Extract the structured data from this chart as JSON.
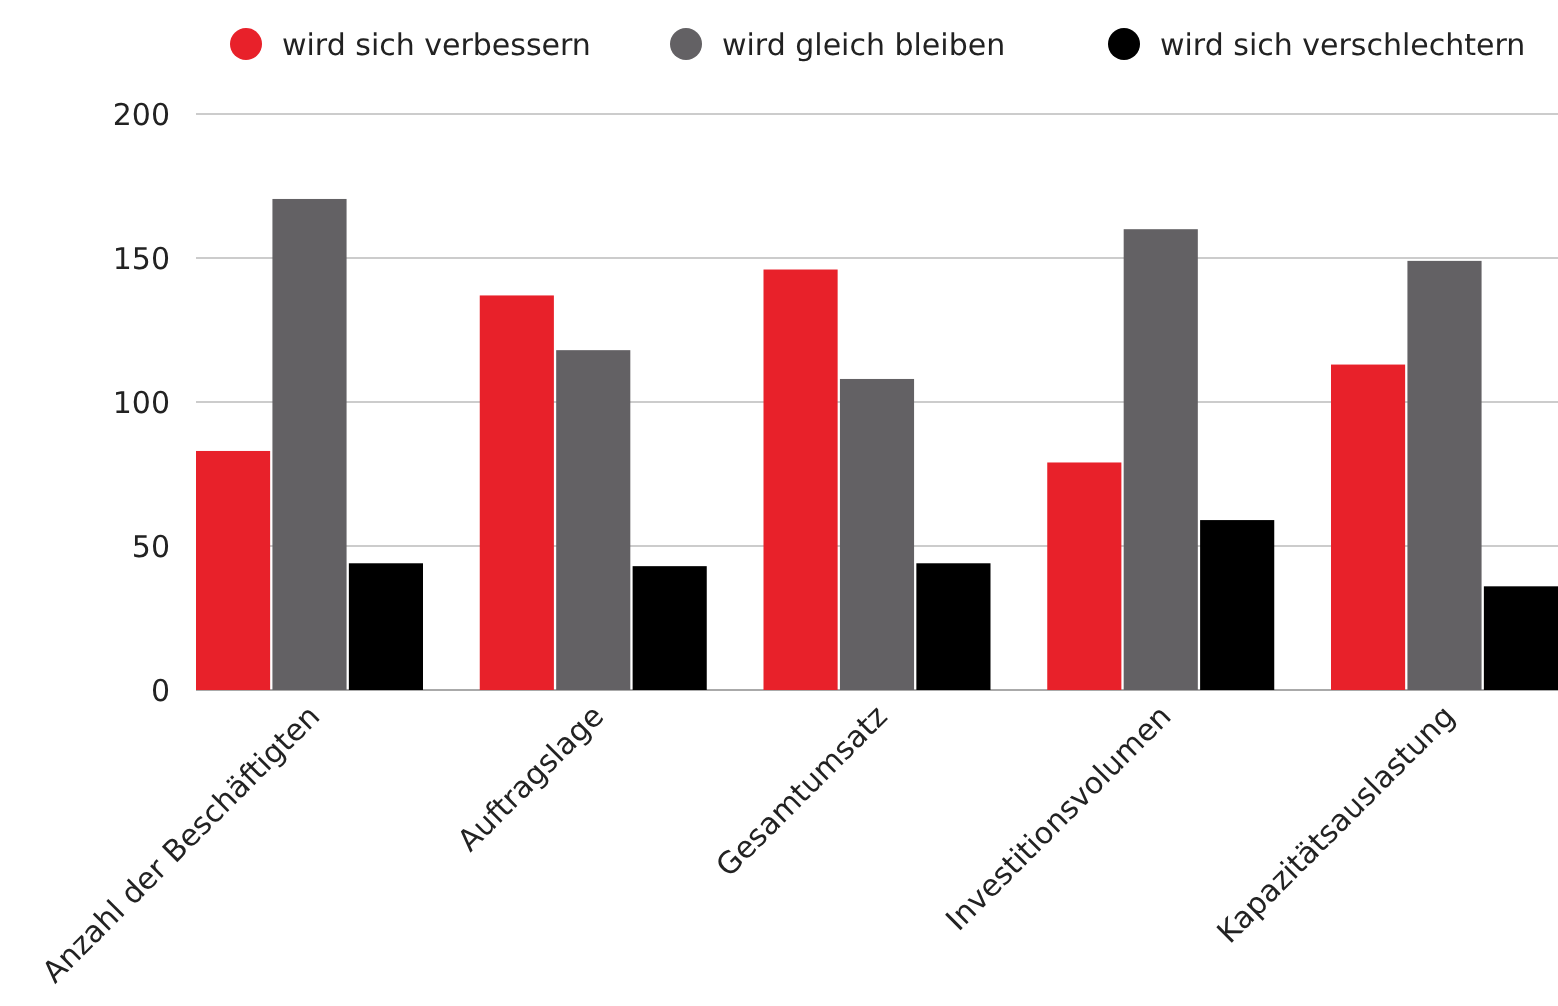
{
  "chart_data": {
    "type": "bar",
    "categories": [
      "Anzahl der Beschäftigten",
      "Auftragslage",
      "Gesamtumsatz",
      "Investitionsvolumen",
      "Kapazitätsauslastung"
    ],
    "series": [
      {
        "name": "wird sich verbessern",
        "color": "#e8212a",
        "values": [
          83,
          137,
          146,
          79,
          113
        ]
      },
      {
        "name": "wird gleich bleiben",
        "color": "#636164",
        "values": [
          170.5,
          118,
          108,
          160,
          149
        ]
      },
      {
        "name": "wird sich verschlechtern",
        "color": "#000000",
        "values": [
          44,
          43,
          44,
          59,
          36
        ]
      }
    ],
    "ylim": [
      0,
      200
    ],
    "yticks": [
      0,
      50,
      100,
      150,
      200
    ],
    "grid": "y",
    "legend": "top"
  }
}
